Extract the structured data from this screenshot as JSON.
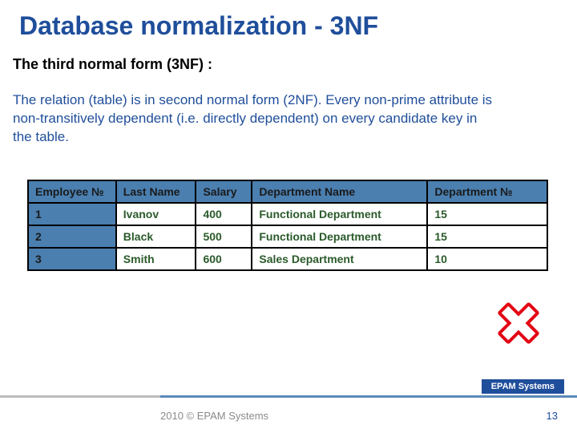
{
  "colors": {
    "title": "#1f4e9b",
    "body": "#1f4e9b",
    "header_bg": "#4a7fb0",
    "header_fg": "#1a1a1a",
    "idx_bg": "#4a7fb0",
    "cell_fg": "#2a5a2a",
    "cross_red": "#e30613",
    "cross_white": "#ffffff",
    "footer_gray": "#bcbcbc",
    "footer_blue": "#5b8ab8",
    "badge_bg": "#1f4e9b",
    "badge_fg": "#ffffff"
  },
  "title": "Database normalization - 3NF",
  "subtitle": "The third normal form (3NF) :",
  "body": "The relation (table) is in second normal form (2NF). Every non-prime attribute is non-transitively dependent (i.e. directly dependent) on every candidate key in the table.",
  "table": {
    "columns": [
      "Employee №",
      "Last Name",
      "Salary",
      "Department Name",
      "Department №"
    ],
    "col_widths": [
      "110px",
      "100px",
      "70px",
      "220px",
      "150px"
    ],
    "rows": [
      [
        "1",
        "Ivanov",
        "400",
        "Functional Department",
        "15"
      ],
      [
        "2",
        "Black",
        "500",
        "Functional Department",
        "15"
      ],
      [
        "3",
        "Smith",
        "600",
        "Sales Department",
        "10"
      ]
    ]
  },
  "footer": {
    "badge": "EPAM Systems",
    "copyright": "2010 © EPAM Systems",
    "page": "13"
  }
}
